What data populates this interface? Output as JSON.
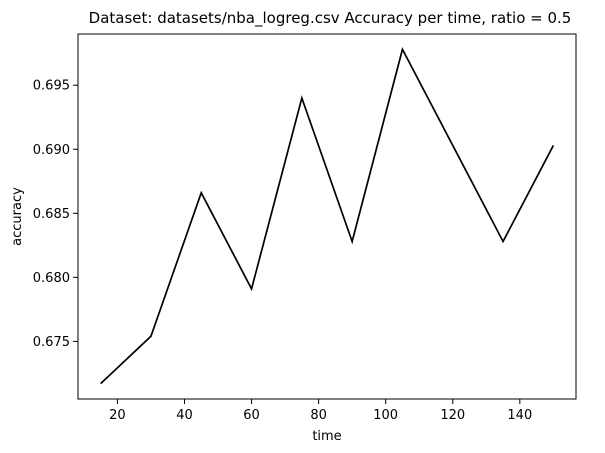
{
  "chart_data": {
    "type": "line",
    "title": "Dataset: datasets/nba_logreg.csv Accuracy per time, ratio = 0.5",
    "xlabel": "time",
    "ylabel": "accuracy",
    "xlim": [
      8.25,
      156.75
    ],
    "ylim": [
      0.6705,
      0.699
    ],
    "xticks": [
      20,
      40,
      60,
      80,
      100,
      120,
      140
    ],
    "yticks": [
      0.675,
      0.68,
      0.685,
      0.69,
      0.695
    ],
    "xtick_labels": [
      "20",
      "40",
      "60",
      "80",
      "100",
      "120",
      "140"
    ],
    "ytick_labels": [
      "0.675",
      "0.680",
      "0.685",
      "0.690",
      "0.695"
    ],
    "grid": false,
    "line_color": "#000000",
    "x": [
      15,
      30,
      45,
      60,
      75,
      90,
      105,
      120,
      135,
      150
    ],
    "y": [
      0.6717,
      0.6754,
      0.6866,
      0.6791,
      0.694,
      0.6828,
      0.6978,
      0.6903,
      0.6828,
      0.6903
    ]
  }
}
